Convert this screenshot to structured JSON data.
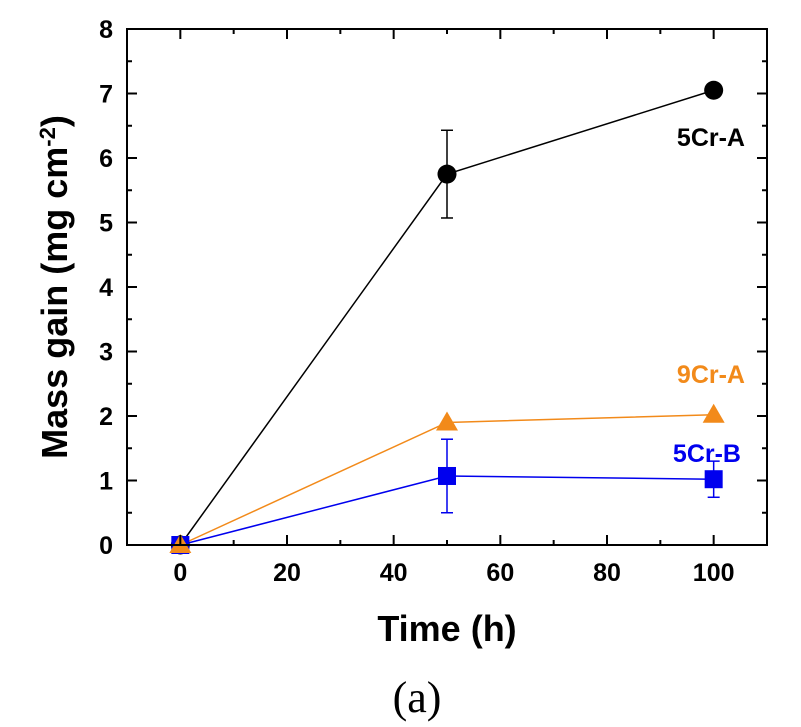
{
  "caption": "(a)",
  "colors": {
    "5Cr-A": "#000000",
    "9Cr-A": "#f28a1a",
    "5Cr-B": "#0000ee"
  },
  "chart_data": {
    "type": "line",
    "xlabel": "Time (h)",
    "ylabel": "Mass gain (mg cm-2)",
    "ylabel_parts": {
      "main": "Mass gain (mg cm",
      "sup": "-2",
      "end": ")"
    },
    "xlim": [
      -10,
      110
    ],
    "ylim": [
      0,
      8
    ],
    "xticks": [
      0,
      20,
      40,
      60,
      80,
      100
    ],
    "yticks": [
      0,
      1,
      2,
      3,
      4,
      5,
      6,
      7,
      8
    ],
    "grid": false,
    "series": [
      {
        "name": "5Cr-A",
        "marker": "circle",
        "color": "#000000",
        "x": [
          0,
          50,
          100
        ],
        "y": [
          0,
          5.75,
          7.05
        ],
        "err": [
          0,
          0.68,
          0
        ]
      },
      {
        "name": "9Cr-A",
        "marker": "triangle",
        "color": "#f28a1a",
        "x": [
          0,
          50,
          100
        ],
        "y": [
          0,
          1.9,
          2.02
        ],
        "err": [
          0,
          0,
          0
        ]
      },
      {
        "name": "5Cr-B",
        "marker": "square",
        "color": "#0000ee",
        "x": [
          0,
          50,
          100
        ],
        "y": [
          0,
          1.07,
          1.02
        ],
        "err": [
          0,
          0.57,
          0.28
        ]
      }
    ]
  }
}
